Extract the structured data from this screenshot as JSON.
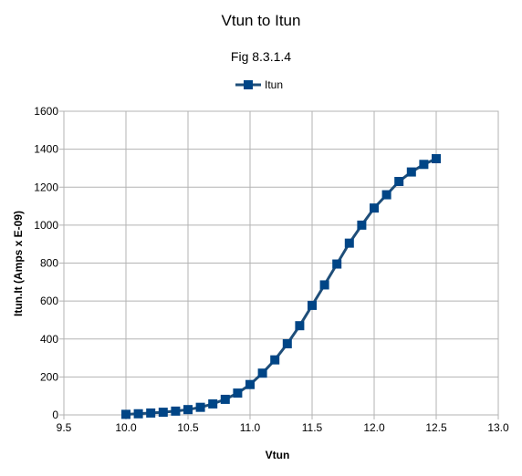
{
  "chart_data": {
    "type": "line",
    "title": "Vtun to Itun",
    "subtitle": "Fig 8.3.1.4",
    "xlabel": "Vtun",
    "ylabel": "Itun.It (Amps x E-09)",
    "xlim": [
      9.5,
      13.0
    ],
    "ylim": [
      0,
      1600
    ],
    "xticks": [
      "9.5",
      "10.0",
      "10.5",
      "11.0",
      "11.5",
      "12.0",
      "12.5",
      "13.0"
    ],
    "yticks": [
      "0",
      "200",
      "400",
      "600",
      "800",
      "1000",
      "1200",
      "1400",
      "1600"
    ],
    "grid": true,
    "legend_position": "top",
    "series": [
      {
        "name": "Itun",
        "color": "#1f4e79",
        "marker_color": "#004586",
        "x": [
          10.0,
          10.1,
          10.2,
          10.3,
          10.4,
          10.5,
          10.6,
          10.7,
          10.8,
          10.9,
          11.0,
          11.1,
          11.2,
          11.3,
          11.4,
          11.5,
          11.6,
          11.7,
          11.8,
          11.9,
          12.0,
          12.1,
          12.2,
          12.3,
          12.4,
          12.5
        ],
        "y": [
          3,
          6,
          10,
          14,
          20,
          28,
          40,
          58,
          82,
          115,
          160,
          220,
          290,
          375,
          470,
          577,
          685,
          795,
          905,
          1000,
          1090,
          1160,
          1230,
          1280,
          1320,
          1350
        ]
      }
    ]
  }
}
